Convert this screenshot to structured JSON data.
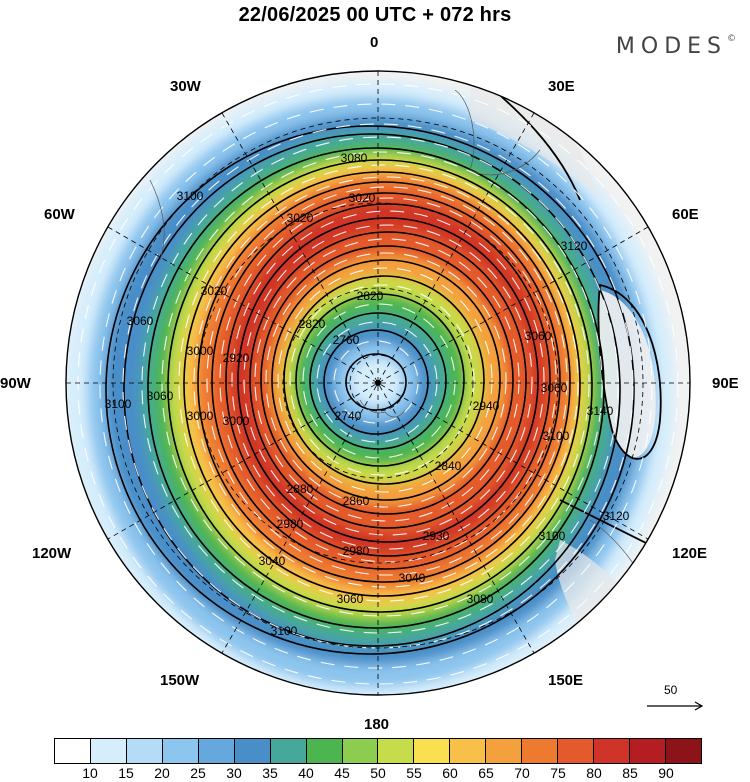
{
  "title": "22/06/2025  00 UTC  + 072 hrs",
  "brand": "MODES",
  "brand_mark": "©",
  "longitude_labels": {
    "top": "0",
    "top_right": "30E",
    "right_upper": "60E",
    "right": "90E",
    "right_lower": "120E",
    "bottom_right": "150E",
    "bottom": "180",
    "bottom_left": "150W",
    "left_lower": "120W",
    "left": "90W",
    "left_upper": "60W",
    "top_left": "30W"
  },
  "reference_vector": "50",
  "colorbar": {
    "colors": [
      "#ffffff",
      "#d6eefc",
      "#b4dcf6",
      "#8cc5ee",
      "#64a8de",
      "#4a8ec8",
      "#46a89a",
      "#4cb550",
      "#8ccc4e",
      "#c6dc4a",
      "#f8e050",
      "#f8c048",
      "#f4a03c",
      "#ee7a30",
      "#e45a2c",
      "#d03428",
      "#b41e22",
      "#8c1418"
    ],
    "tick_labels": [
      "10",
      "15",
      "20",
      "25",
      "30",
      "35",
      "40",
      "45",
      "50",
      "55",
      "60",
      "65",
      "70",
      "75",
      "80",
      "85",
      "90"
    ]
  },
  "contour_labels": [
    "3080",
    "3020",
    "3020",
    "2820",
    "2760",
    "2820",
    "3020",
    "3100",
    "3060",
    "3000",
    "2920",
    "3000",
    "3060",
    "3100",
    "3060",
    "3120",
    "3140",
    "3100",
    "3120",
    "3100",
    "3060",
    "3000",
    "2940",
    "2840",
    "2860",
    "2880",
    "2980",
    "2930",
    "2980",
    "3040",
    "3040",
    "3060",
    "3080",
    "3100",
    "2740"
  ]
}
